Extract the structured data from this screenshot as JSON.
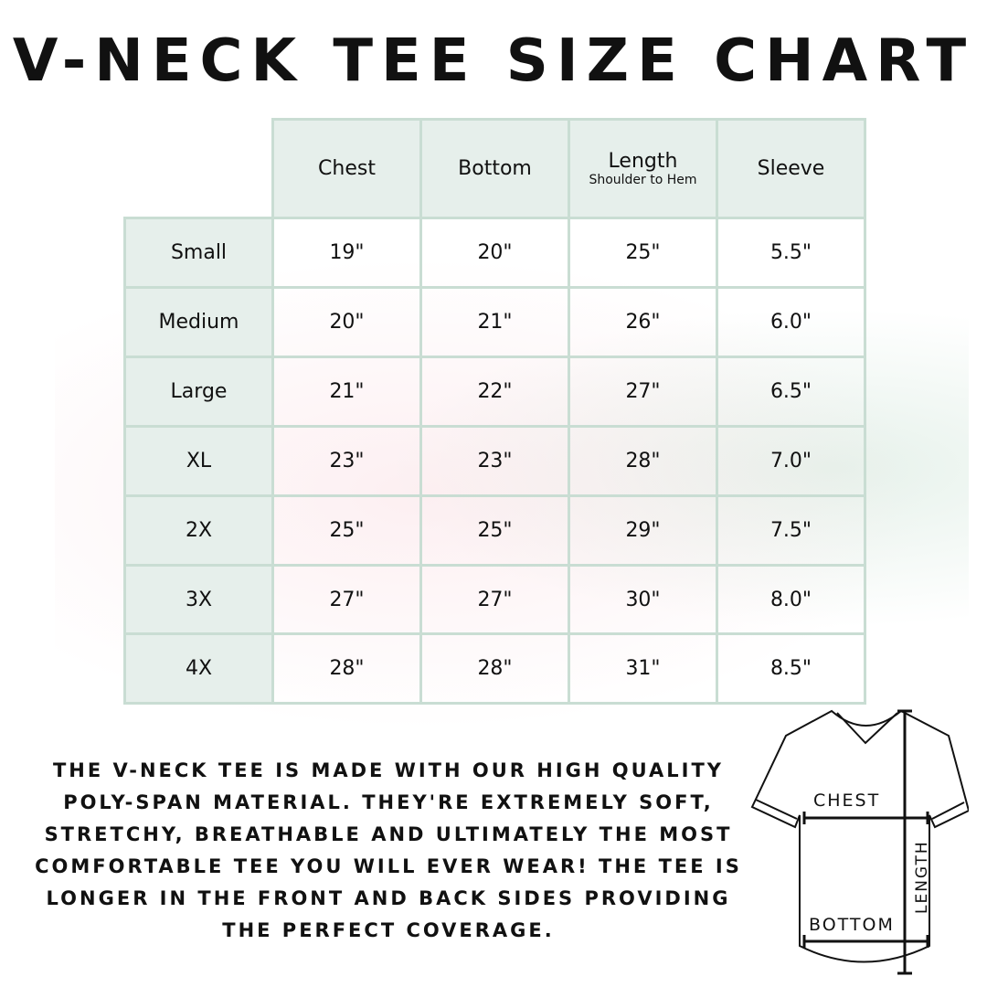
{
  "title": "V-NECK TEE SIZE CHART",
  "table": {
    "headers": [
      {
        "label": "Chest",
        "sub": ""
      },
      {
        "label": "Bottom",
        "sub": ""
      },
      {
        "label": "Length",
        "sub": "Shoulder to Hem"
      },
      {
        "label": "Sleeve",
        "sub": ""
      }
    ],
    "rows": [
      {
        "size": "Small",
        "values": [
          "19\"",
          "20\"",
          "25\"",
          "5.5\""
        ]
      },
      {
        "size": "Medium",
        "values": [
          "20\"",
          "21\"",
          "26\"",
          "6.0\""
        ]
      },
      {
        "size": "Large",
        "values": [
          "21\"",
          "22\"",
          "27\"",
          "6.5\""
        ]
      },
      {
        "size": "XL",
        "values": [
          "23\"",
          "23\"",
          "28\"",
          "7.0\""
        ]
      },
      {
        "size": "2X",
        "values": [
          "25\"",
          "25\"",
          "29\"",
          "7.5\""
        ]
      },
      {
        "size": "3X",
        "values": [
          "27\"",
          "27\"",
          "30\"",
          "8.0\""
        ]
      },
      {
        "size": "4X",
        "values": [
          "28\"",
          "28\"",
          "31\"",
          "8.5\""
        ]
      }
    ]
  },
  "description": "The V-neck tee is made with our high quality poly-span material. They're extremely soft, stretchy, breathable and ultimately the most comfortable tee you will ever wear! The tee is longer in the front and back sides providing the perfect coverage.",
  "diagram": {
    "chest": "CHEST",
    "bottom": "BOTTOM",
    "length": "LENGTH"
  },
  "colors": {
    "border": "#c9ddd3",
    "header_bg": "#e6efeb"
  }
}
